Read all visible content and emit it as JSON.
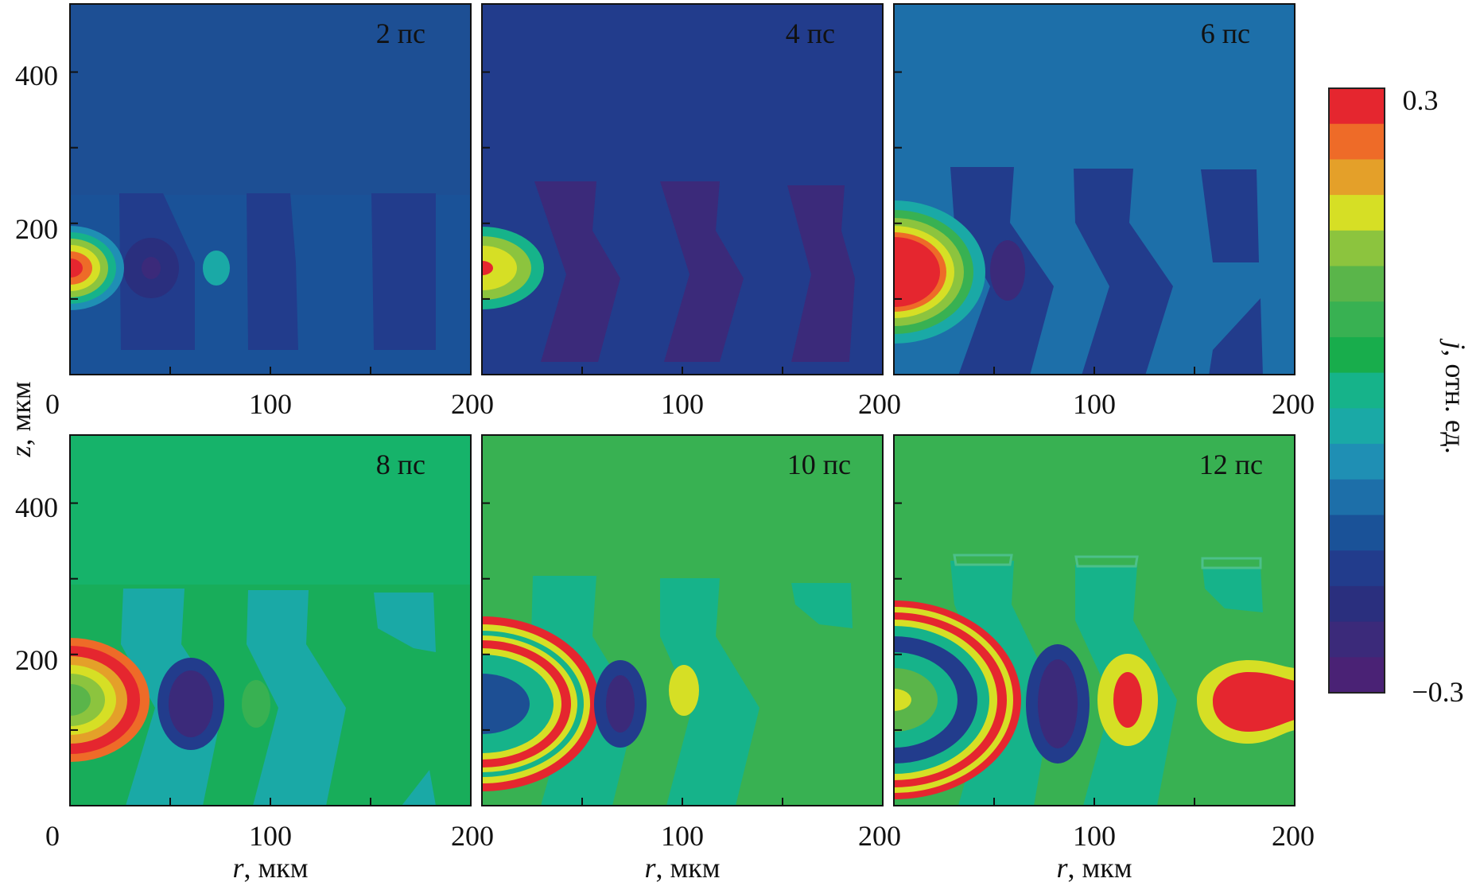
{
  "chart_data": {
    "type": "heatmap",
    "title": "",
    "xlabel": {
      "symbol": "r",
      "unit": ", мкм"
    },
    "ylabel": {
      "symbol": "z",
      "unit": ", мкм"
    },
    "xlim": [
      0,
      200
    ],
    "ylim": [
      0,
      490
    ],
    "xticks": [
      0,
      100,
      200
    ],
    "xtick_labels": [
      "0",
      "100",
      "200"
    ],
    "yticks": [
      200,
      400
    ],
    "ytick_labels": [
      "200",
      "400"
    ],
    "colorbar": {
      "label_symbol": "j",
      "label_unit": ", отн. ед.",
      "min": -0.3,
      "max": 0.3,
      "min_label": "−0.3",
      "max_label": "0.3",
      "levels": 15,
      "colors": [
        "#4a2275",
        "#3b2a7a",
        "#2a2f7e",
        "#223c8c",
        "#1a5298",
        "#1d6fa9",
        "#1f8fb4",
        "#1aa9a6",
        "#16b38a",
        "#18ad4c",
        "#38b152",
        "#5ab54a",
        "#8cc43e",
        "#d6df25",
        "#e4a029",
        "#ee6b28",
        "#e5262f"
      ]
    },
    "panels": [
      {
        "time_label": "2 пс",
        "field": "j(r,z)",
        "background_level": -0.2
      },
      {
        "time_label": "4 пс",
        "field": "j(r,z)",
        "background_level": -0.25
      },
      {
        "time_label": "6 пс",
        "field": "j(r,z)",
        "background_level": -0.17
      },
      {
        "time_label": "8 пс",
        "field": "j(r,z)",
        "background_level": 0.0
      },
      {
        "time_label": "10 пс",
        "field": "j(r,z)",
        "background_level": 0.02
      },
      {
        "time_label": "12 пс",
        "field": "j(r,z)",
        "background_level": 0.04
      }
    ]
  }
}
